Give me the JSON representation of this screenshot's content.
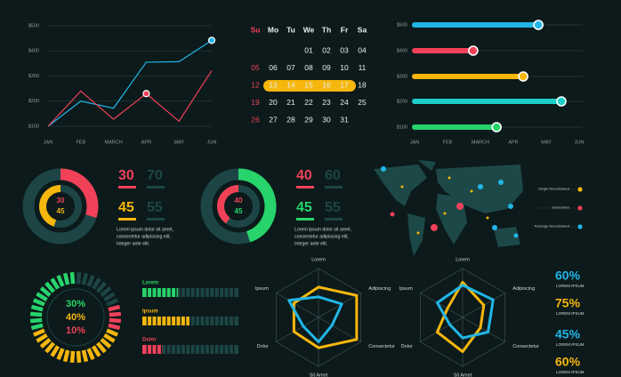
{
  "chart_data": [
    {
      "type": "line",
      "categories": [
        "JAN",
        "FEB",
        "MARCH",
        "APR",
        "MAY",
        "JUN"
      ],
      "ylim": [
        100,
        500
      ],
      "yticks": [
        {
          "value": 100,
          "label": "$100"
        },
        {
          "value": 200,
          "label": "$200"
        },
        {
          "value": 300,
          "label": "$300"
        },
        {
          "value": 400,
          "label": "$400"
        },
        {
          "value": 500,
          "label": "$500"
        }
      ],
      "grid": true,
      "series": [
        {
          "color": "#21b6e8",
          "values": [
            100,
            200,
            172,
            355,
            357,
            442
          ]
        },
        {
          "color": "#f04159",
          "values": [
            100,
            240,
            128,
            230,
            120,
            322
          ]
        }
      ]
    },
    {
      "type": "hbar",
      "categories": [
        "$500",
        "$400",
        "$300",
        "$200",
        "$100"
      ],
      "values": [
        3.76,
        1.78,
        3.3,
        4.46,
        2.49
      ],
      "colors": [
        "#21b6e8",
        "#f04159",
        "#f6b60c",
        "#1ccfc9",
        "#27d46b"
      ],
      "xlim": [
        0,
        5
      ],
      "xticks": [
        {
          "value": 0,
          "label": "JAN"
        },
        {
          "value": 1,
          "label": "FEB"
        },
        {
          "value": 2,
          "label": "MARCH"
        },
        {
          "value": 3,
          "label": "APR"
        },
        {
          "value": 4,
          "label": "MAY"
        },
        {
          "value": 5,
          "label": "JUN"
        }
      ]
    },
    {
      "type": "donut",
      "rings": [
        {
          "color": "#f04159",
          "values": [
            30,
            70
          ]
        },
        {
          "color": "#f6b60c",
          "values": [
            45,
            55
          ]
        }
      ],
      "text_lines": [
        "Lorem ipsum dolor sit amet,",
        "consectetur adipiscing elit,",
        "Integer ante elit."
      ]
    },
    {
      "type": "donut",
      "rings": [
        {
          "color": "#27d46b",
          "values": [
            45,
            55
          ]
        },
        {
          "color": "#f04159",
          "values": [
            40,
            60
          ]
        }
      ],
      "text_lines": [
        "Lorem ipsum dolor sit amet,",
        "consectetur adipiscing elit,",
        "Integer ante elit."
      ]
    },
    {
      "type": "radial",
      "values": [
        30,
        40,
        10
      ],
      "value_labels": [
        "30%",
        "40%",
        "10%"
      ],
      "colors": [
        "#27d46b",
        "#f6b60c",
        "#f04159"
      ]
    },
    {
      "type": "progress",
      "categories": [
        "Lorem",
        "Ipsum",
        "Dolor"
      ],
      "values": [
        37,
        49,
        21
      ],
      "colors": [
        "#27d46b",
        "#f6b60c",
        "#f04159"
      ],
      "xlim": [
        0,
        100
      ]
    },
    {
      "type": "radar",
      "categories": [
        "Lorem",
        "Adipiscing",
        "Consectetur",
        "Sit Amet",
        "Dolor",
        "Ipsum"
      ],
      "rlim": [
        0,
        100
      ],
      "series": [
        {
          "color": "#f6b60c",
          "values": [
            62,
            90,
            90,
            62,
            58,
            58
          ]
        },
        {
          "color": "#21b6e8",
          "values": [
            42,
            55,
            32,
            50,
            36,
            70
          ]
        }
      ]
    },
    {
      "type": "radar",
      "categories": [
        "Lorem",
        "Adipiscing",
        "Consectetur",
        "Sit Amet",
        "Dolor",
        "Ipsum"
      ],
      "rlim": [
        0,
        100
      ],
      "series": [
        {
          "color": "#f6b60c",
          "values": [
            72,
            50,
            42,
            70,
            60,
            36
          ]
        },
        {
          "color": "#21b6e8",
          "values": [
            66,
            72,
            60,
            42,
            30,
            60
          ]
        }
      ]
    }
  ],
  "calendar": {
    "headers": [
      "Su",
      "Mo",
      "Tu",
      "We",
      "Th",
      "Fr",
      "Sa"
    ],
    "sunday_color": "#f04159",
    "highlight_color": "#f6b60c",
    "weeks": [
      [
        null,
        null,
        null,
        "01",
        "02",
        "03",
        "04"
      ],
      [
        "05",
        "06",
        "07",
        "08",
        "09",
        "10",
        "11"
      ],
      [
        "12",
        {
          "text": "13",
          "highlighted": true
        },
        {
          "text": "14",
          "highlighted": true
        },
        {
          "text": "15",
          "highlighted": true
        },
        {
          "text": "16",
          "highlighted": true
        },
        {
          "text": "17",
          "highlighted": true
        },
        "18"
      ],
      [
        "19",
        "20",
        "21",
        "22",
        "23",
        "24",
        "25"
      ],
      [
        "26",
        "27",
        "28",
        "29",
        "30",
        "31",
        null
      ]
    ]
  },
  "map": {
    "legend": [
      {
        "name": "Single Neurotasked",
        "color": "#f6b60c"
      },
      {
        "name": "Subscribes",
        "color": "#f04159"
      },
      {
        "name": "Package Neurotasked",
        "color": "#21b6e8"
      }
    ]
  },
  "stats": [
    {
      "value": "60%",
      "label": "LOREM IPSUM",
      "color": "#21b6e8"
    },
    {
      "value": "75%",
      "label": "LOREM IPSUM",
      "color": "#f6b60c"
    },
    {
      "value": "45%",
      "label": "LOREM IPSUM",
      "color": "#21b6e8"
    },
    {
      "value": "60%",
      "label": "LOREM IPSUM",
      "color": "#f6b60c"
    }
  ]
}
